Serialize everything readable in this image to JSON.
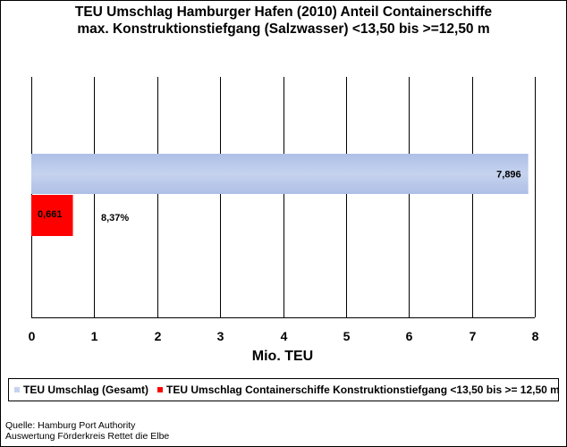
{
  "chart_data": {
    "type": "bar",
    "orientation": "horizontal",
    "title": [
      "TEU Umschlag Hamburger Hafen (2010) Anteil Containerschiffe",
      "max. Konstruktionstiefgang (Salzwasser) <13,50 bis >=12,50 m"
    ],
    "xlabel": "Mio. TEU",
    "xlim": [
      0,
      8
    ],
    "xticks": [
      "0",
      "1",
      "2",
      "3",
      "4",
      "5",
      "6",
      "7",
      "8"
    ],
    "grid": "vertical",
    "legend_position": "bottom",
    "series": [
      {
        "name": "TEU Umschlag (Gesamt)",
        "value": 7.896,
        "label": "7,896",
        "color": "#c5d3ee",
        "gradient_dark": "#aebfe6"
      },
      {
        "name": "TEU Umschlag Containerschiffe Konstruktionstiefgang <13,50 bis >= 12,50 m",
        "value": 0.661,
        "label": "0,661",
        "color": "#ff0000"
      }
    ],
    "annotations": [
      "8,37%"
    ]
  },
  "footer": {
    "source": "Quelle: Hamburg Port Authority",
    "evaluation": "Auswertung Förderkreis Rettet die Elbe"
  }
}
